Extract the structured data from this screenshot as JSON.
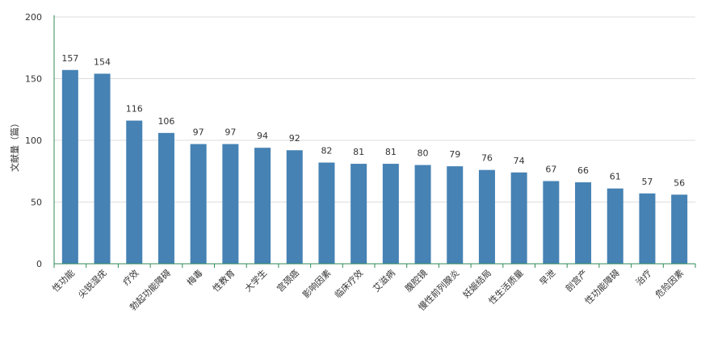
{
  "chart_data": {
    "type": "bar",
    "ylabel": "文献量（篇）",
    "xlabel": "",
    "ylim": [
      0,
      200
    ],
    "yticks": [
      0,
      50,
      100,
      150,
      200
    ],
    "grid": true,
    "colors": {
      "bar": "#4682b4",
      "axis": "#2e8b57",
      "grid": "#dddddd"
    },
    "categories": [
      "性功能",
      "尖锐湿疣",
      "疗效",
      "勃起功能障碍",
      "梅毒",
      "性教育",
      "大学生",
      "宫颈癌",
      "影响因素",
      "临床疗效",
      "艾滋病",
      "腹腔镜",
      "慢性前列腺炎",
      "妊娠结局",
      "性生活质量",
      "早泄",
      "剖宫产",
      "性功能障碍",
      "治疗",
      "危险因素"
    ],
    "values": [
      157,
      154,
      116,
      106,
      97,
      97,
      94,
      92,
      82,
      81,
      81,
      80,
      79,
      76,
      74,
      67,
      66,
      61,
      57,
      56
    ]
  }
}
